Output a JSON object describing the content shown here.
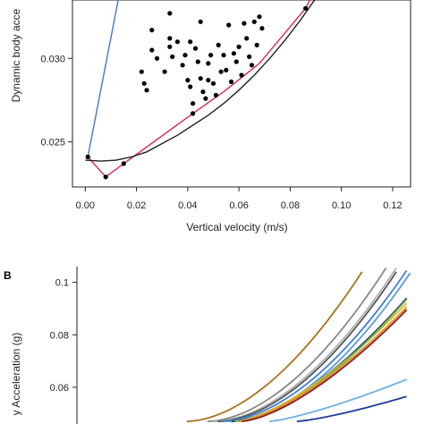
{
  "chart_data": [
    {
      "panel": "",
      "type": "scatter",
      "xlabel": "Vertical velocity (m/s)",
      "ylabel": "Dynamic body acce",
      "xlim": [
        -0.005,
        0.127
      ],
      "ylim": [
        0.0223,
        0.0335
      ],
      "xticks": [
        0.0,
        0.02,
        0.04,
        0.06,
        0.08,
        0.1,
        0.12
      ],
      "xtick_labels": [
        "0.00",
        "0.02",
        "0.04",
        "0.06",
        "0.08",
        "0.10",
        "0.12"
      ],
      "yticks": [
        0.025,
        0.03
      ],
      "ytick_labels": [
        "0.025",
        "0.030"
      ],
      "points": [
        [
          0.001,
          0.0241
        ],
        [
          0.008,
          0.0229
        ],
        [
          0.015,
          0.0237
        ],
        [
          0.022,
          0.0292
        ],
        [
          0.023,
          0.0285
        ],
        [
          0.024,
          0.0281
        ],
        [
          0.026,
          0.0305
        ],
        [
          0.026,
          0.0317
        ],
        [
          0.028,
          0.03
        ],
        [
          0.031,
          0.0292
        ],
        [
          0.033,
          0.0312
        ],
        [
          0.033,
          0.0307
        ],
        [
          0.033,
          0.0327
        ],
        [
          0.034,
          0.0301
        ],
        [
          0.036,
          0.031
        ],
        [
          0.038,
          0.0296
        ],
        [
          0.039,
          0.0302
        ],
        [
          0.04,
          0.0287
        ],
        [
          0.041,
          0.0283
        ],
        [
          0.041,
          0.031
        ],
        [
          0.042,
          0.0267
        ],
        [
          0.042,
          0.0273
        ],
        [
          0.043,
          0.0306
        ],
        [
          0.044,
          0.0298
        ],
        [
          0.045,
          0.0288
        ],
        [
          0.045,
          0.0322
        ],
        [
          0.046,
          0.028
        ],
        [
          0.047,
          0.0276
        ],
        [
          0.048,
          0.0297
        ],
        [
          0.048,
          0.0287
        ],
        [
          0.049,
          0.0302
        ],
        [
          0.05,
          0.0285
        ],
        [
          0.051,
          0.0278
        ],
        [
          0.052,
          0.0308
        ],
        [
          0.053,
          0.0292
        ],
        [
          0.054,
          0.0302
        ],
        [
          0.055,
          0.0293
        ],
        [
          0.056,
          0.032
        ],
        [
          0.057,
          0.0286
        ],
        [
          0.058,
          0.0303
        ],
        [
          0.059,
          0.0298
        ],
        [
          0.06,
          0.0307
        ],
        [
          0.061,
          0.029
        ],
        [
          0.062,
          0.0321
        ],
        [
          0.063,
          0.0312
        ],
        [
          0.064,
          0.0301
        ],
        [
          0.065,
          0.0296
        ],
        [
          0.066,
          0.0322
        ],
        [
          0.067,
          0.0308
        ],
        [
          0.068,
          0.0325
        ],
        [
          0.069,
          0.0318
        ],
        [
          0.086,
          0.033
        ]
      ],
      "series": [
        {
          "color": "#4a73c9",
          "points": [
            [
              0.001,
              0.0241
            ],
            [
              0.013,
              0.0336
            ]
          ]
        },
        {
          "color": "#d8265a",
          "points": [
            [
              0.001,
              0.0241
            ],
            [
              0.008,
              0.0229
            ],
            [
              0.015,
              0.0237
            ],
            [
              0.042,
              0.0267
            ],
            [
              0.054,
              0.028
            ],
            [
              0.068,
              0.0297
            ],
            [
              0.086,
              0.033
            ],
            [
              0.088,
              0.0336
            ]
          ]
        },
        {
          "color": "#222222",
          "points": [
            [
              0.0,
              0.0239
            ],
            [
              0.006,
              0.02385
            ],
            [
              0.012,
              0.0239
            ],
            [
              0.018,
              0.0241
            ],
            [
              0.024,
              0.0244
            ],
            [
              0.03,
              0.0249
            ],
            [
              0.036,
              0.0254
            ],
            [
              0.042,
              0.026
            ],
            [
              0.048,
              0.0266
            ],
            [
              0.054,
              0.0273
            ],
            [
              0.06,
              0.0281
            ],
            [
              0.066,
              0.029
            ],
            [
              0.072,
              0.03
            ],
            [
              0.078,
              0.0311
            ],
            [
              0.084,
              0.0323
            ],
            [
              0.09,
              0.0336
            ]
          ]
        }
      ]
    },
    {
      "panel": "B",
      "type": "line",
      "ylabel": "y Acceleration (g)",
      "xlim": [
        0,
        10
      ],
      "ylim": [
        0.046,
        0.106
      ],
      "yticks": [
        0.06,
        0.08,
        0.1
      ],
      "ytick_labels": [
        "0.06",
        "0.08",
        "0.1"
      ],
      "series": [
        {
          "color": "#a8741a",
          "x0": 3.2,
          "x1": 8.3,
          "y0": 0.047,
          "y1": 0.104,
          "k": 1.8
        },
        {
          "color": "#888888",
          "x0": 3.8,
          "x1": 9.0,
          "y0": 0.047,
          "y1": 0.1055,
          "k": 1.8
        },
        {
          "color": "#b0b0b0",
          "x0": 4.0,
          "x1": 9.3,
          "y0": 0.047,
          "y1": 0.1055,
          "k": 1.8
        },
        {
          "color": "#555555",
          "x0": 4.1,
          "x1": 9.3,
          "y0": 0.047,
          "y1": 0.104,
          "k": 1.8
        },
        {
          "color": "#3a7fd8",
          "x0": 4.2,
          "x1": 9.6,
          "y0": 0.047,
          "y1": 0.1045,
          "k": 1.8
        },
        {
          "color": "#5b9bd5",
          "x0": 4.4,
          "x1": 9.7,
          "y0": 0.047,
          "y1": 0.1035,
          "k": 1.8
        },
        {
          "color": "#1f3b78",
          "x0": 4.5,
          "x1": 9.6,
          "y0": 0.047,
          "y1": 0.094,
          "k": 1.6
        },
        {
          "color": "#f0b830",
          "x0": 4.6,
          "x1": 9.6,
          "y0": 0.047,
          "y1": 0.092,
          "k": 1.5
        },
        {
          "color": "#6fb844",
          "x0": 4.6,
          "x1": 9.6,
          "y0": 0.047,
          "y1": 0.0935,
          "k": 1.6
        },
        {
          "color": "#e08a2b",
          "x0": 4.7,
          "x1": 9.6,
          "y0": 0.047,
          "y1": 0.0905,
          "k": 1.5
        },
        {
          "color": "#8c1f1f",
          "x0": 4.8,
          "x1": 9.6,
          "y0": 0.047,
          "y1": 0.0895,
          "k": 1.5
        },
        {
          "color": "#6bb3e0",
          "x0": 5.6,
          "x1": 9.6,
          "y0": 0.047,
          "y1": 0.063,
          "k": 1.3
        },
        {
          "color": "#1f3b9a",
          "x0": 6.4,
          "x1": 9.6,
          "y0": 0.047,
          "y1": 0.0565,
          "k": 1.3
        }
      ]
    }
  ]
}
